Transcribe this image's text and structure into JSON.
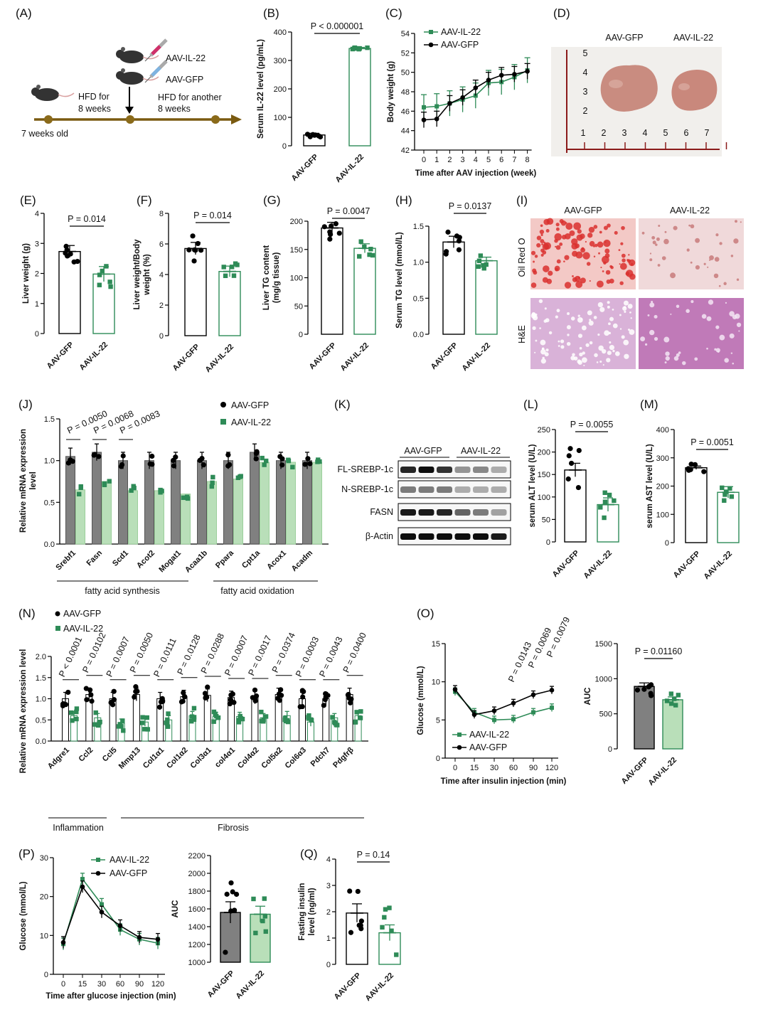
{
  "colors": {
    "gfp": "#000000",
    "il22": "#2e8b57",
    "il22_fill": "#b9dfb9",
    "gfp_fill": "#808080"
  },
  "panels": {
    "A": {
      "label": "(A)",
      "texts": [
        "AAV-IL-22",
        "AAV-GFP",
        "HFD for",
        "8 weeks",
        "HFD for another",
        "8 weeks",
        "7 weeks old"
      ]
    },
    "D": {
      "label": "(D)",
      "col_labels": [
        "AAV-GFP",
        "AAV-IL-22"
      ],
      "ruler_numbers": [
        "1",
        "2",
        "3",
        "4",
        "5",
        "6",
        "7",
        "2",
        "3",
        "4",
        "5"
      ]
    },
    "I": {
      "label": "(I)",
      "col_labels": [
        "AAV-GFP",
        "AAV-IL-22"
      ],
      "row_labels": [
        "Oil Red O",
        "H&E"
      ]
    },
    "K": {
      "label": "(K)",
      "groups": [
        "AAV-GFP",
        "AAV-IL-22"
      ],
      "rows": [
        "FL-SREBP-1c",
        "N-SREBP-1c",
        "FASN",
        "β-Actin"
      ]
    }
  },
  "chart_data": [
    {
      "id": "B",
      "label": "(B)",
      "type": "bar",
      "ylabel": "Serum IL-22 level (pg/mL)",
      "ylim": [
        0,
        400
      ],
      "yticks": [
        "0",
        "100",
        "200",
        "300",
        "400"
      ],
      "categories": [
        "AAV-GFP",
        "AAV-IL-22"
      ],
      "values": [
        38,
        342
      ],
      "fills": [
        "white",
        "white"
      ],
      "p_values": [
        "P < 0.000001"
      ]
    },
    {
      "id": "C",
      "label": "(C)",
      "type": "line",
      "xlabel": "Time after AAV injection (week)",
      "ylabel": "Body weight (g)",
      "ylim": [
        42,
        54
      ],
      "yticks": [
        "42",
        "44",
        "46",
        "48",
        "50",
        "52",
        "54"
      ],
      "x": [
        0,
        1,
        2,
        3,
        4,
        5,
        6,
        7,
        8
      ],
      "xticks": [
        "0",
        "1",
        "2",
        "3",
        "4",
        "5",
        "6",
        "7",
        "8"
      ],
      "series": [
        {
          "name": "AAV-IL-22",
          "values": [
            46.4,
            46.5,
            46.8,
            47.2,
            47.6,
            48.9,
            49.0,
            49.5,
            50.2
          ]
        },
        {
          "name": "AAV-GFP",
          "values": [
            45.1,
            45.2,
            46.8,
            47.4,
            48.4,
            49.2,
            49.7,
            49.8,
            50.1
          ]
        }
      ]
    },
    {
      "id": "E",
      "label": "(E)",
      "type": "bar",
      "ylabel": "Liver weight (g)",
      "ylim": [
        0,
        4
      ],
      "yticks": [
        "0",
        "1",
        "2",
        "3",
        "4"
      ],
      "categories": [
        "AAV-GFP",
        "AAV-IL-22"
      ],
      "values": [
        2.73,
        1.98
      ],
      "fills": [
        "white",
        "white"
      ],
      "p_values": [
        "P = 0.014"
      ]
    },
    {
      "id": "F",
      "label": "(F)",
      "type": "bar",
      "ylabel": "Liver weight/Body weight (%)",
      "ylim": [
        0,
        8
      ],
      "yticks": [
        "0",
        "2",
        "4",
        "6",
        "8"
      ],
      "categories": [
        "AAV-GFP",
        "AAV-IL-22"
      ],
      "values": [
        5.7,
        4.2
      ],
      "fills": [
        "white",
        "white"
      ],
      "p_values": [
        "P = 0.014"
      ]
    },
    {
      "id": "G",
      "label": "(G)",
      "type": "bar",
      "ylabel": "Liver TG content (mg/g tissue)",
      "ylim": [
        0,
        200
      ],
      "yticks": [
        "0",
        "50",
        "100",
        "150",
        "200"
      ],
      "categories": [
        "AAV-GFP",
        "AAV-IL-22"
      ],
      "values": [
        188,
        152
      ],
      "fills": [
        "white",
        "white"
      ],
      "p_values": [
        "P = 0.0047"
      ]
    },
    {
      "id": "H",
      "label": "(H)",
      "type": "bar",
      "ylabel": "Serum TG level (mmol/L)",
      "ylim": [
        0,
        1.5
      ],
      "yticks": [
        "0.0",
        "0.5",
        "1.0",
        "1.5"
      ],
      "categories": [
        "AAV-GFP",
        "AAV-IL-22"
      ],
      "values": [
        1.28,
        1.02
      ],
      "fills": [
        "white",
        "white"
      ],
      "p_values": [
        "P = 0.0137"
      ]
    },
    {
      "id": "J",
      "label": "(J)",
      "type": "bar",
      "ylabel": "Relative mRNA expression level",
      "ylim": [
        0,
        1.5
      ],
      "yticks": [
        "0.0",
        "0.5",
        "1.0",
        "1.5"
      ],
      "categories": [
        "Srebf1",
        "Fasn",
        "Scd1",
        "Acot2",
        "Mogat1",
        "Acaa1b",
        "Ppara",
        "Cpt1a",
        "Acox1",
        "Acadm"
      ],
      "series": [
        {
          "name": "AAV-GFP",
          "values": [
            1.05,
            1.1,
            1.0,
            1.0,
            1.0,
            1.0,
            1.0,
            1.1,
            1.0,
            1.0
          ]
        },
        {
          "name": "AAV-IL-22",
          "values": [
            0.65,
            0.75,
            0.64,
            0.64,
            0.6,
            0.75,
            0.78,
            0.98,
            0.98,
            0.98
          ]
        }
      ],
      "p_values": [
        "P = 0.0050",
        "P = 0.0068",
        "P = 0.0083"
      ],
      "groups": [
        "fatty acid synthesis",
        "fatty acid oxidation"
      ]
    },
    {
      "id": "L",
      "label": "(L)",
      "type": "bar",
      "ylabel": "serum ALT level (U/L)",
      "ylim": [
        0,
        250
      ],
      "yticks": [
        "0",
        "50",
        "100",
        "150",
        "200",
        "250"
      ],
      "categories": [
        "AAV-GFP",
        "AAV-IL-22"
      ],
      "values": [
        160,
        83
      ],
      "fills": [
        "white",
        "white"
      ],
      "p_values": [
        "P = 0.0055"
      ]
    },
    {
      "id": "M",
      "label": "(M)",
      "type": "bar",
      "ylabel": "serum AST level (U/L)",
      "ylim": [
        0,
        400
      ],
      "yticks": [
        "0",
        "100",
        "200",
        "300",
        "400"
      ],
      "categories": [
        "AAV-GFP",
        "AAV-IL-22"
      ],
      "values": [
        265,
        178
      ],
      "fills": [
        "white",
        "white"
      ],
      "p_values": [
        "P = 0.0051"
      ]
    },
    {
      "id": "N",
      "label": "(N)",
      "type": "bar",
      "ylabel": "Relative mRNA expression level",
      "ylim": [
        0,
        2.0
      ],
      "yticks": [
        "0.0",
        "0.5",
        "1.0",
        "1.5",
        "2.0"
      ],
      "categories": [
        "Adgre1",
        "Ccl2",
        "Ccl5",
        "Mmp13",
        "Col1α1",
        "Col1α2",
        "Col3α1",
        "col4α1",
        "Col4α2",
        "Col5α2",
        "Col6α3",
        "Pdch7",
        "Pdgfrβ"
      ],
      "series": [
        {
          "name": "AAV-GFP",
          "values": [
            1.0,
            1.1,
            1.0,
            1.1,
            1.0,
            1.05,
            1.08,
            1.03,
            1.03,
            1.1,
            1.0,
            1.0,
            1.1
          ]
        },
        {
          "name": "AAV-IL-22",
          "values": [
            0.6,
            0.55,
            0.42,
            0.45,
            0.5,
            0.6,
            0.58,
            0.58,
            0.55,
            0.6,
            0.45,
            0.55,
            0.6
          ]
        }
      ],
      "p_values": [
        "P < 0.0001",
        "P = 0.0102",
        "P = 0.0007",
        "P = 0.0050",
        "P = 0.0111",
        "P = 0.0128",
        "P = 0.0288",
        "P = 0.0007",
        "P = 0.0017",
        "P = 0.0374",
        "P = 0.0003",
        "P = 0.0043",
        "P = 0.0400"
      ],
      "groups": [
        "Inflammation",
        "Fibrosis"
      ]
    },
    {
      "id": "O1",
      "label": "(O)",
      "type": "line",
      "xlabel": "Time after insulin injection (min)",
      "ylabel": "Glucose (mmol/L)",
      "ylim": [
        0,
        15
      ],
      "yticks": [
        "0",
        "5",
        "10",
        "15"
      ],
      "x": [
        0,
        15,
        30,
        60,
        90,
        120
      ],
      "xticks": [
        "0",
        "15",
        "30",
        "60",
        "90",
        "120"
      ],
      "series": [
        {
          "name": "AAV-IL-22",
          "values": [
            8.7,
            6.0,
            5.0,
            5.1,
            6.0,
            6.6
          ]
        },
        {
          "name": "AAV-GFP",
          "values": [
            9.0,
            5.7,
            6.2,
            7.2,
            8.3,
            8.9
          ]
        }
      ],
      "p_values": [
        "P = 0.0143",
        "P = 0.0069",
        "P = 0.0079"
      ]
    },
    {
      "id": "O2",
      "label": "",
      "type": "bar",
      "ylabel": "AUC",
      "ylim": [
        0,
        1500
      ],
      "yticks": [
        "0",
        "500",
        "1000",
        "1500"
      ],
      "categories": [
        "AAV-GFP",
        "AAV-IL-22"
      ],
      "values": [
        890,
        700
      ],
      "fills": [
        "gray",
        "green"
      ],
      "p_values": [
        "P = 0.01160"
      ]
    },
    {
      "id": "P1",
      "label": "(P)",
      "type": "line",
      "xlabel": "Time after glucose injection (min)",
      "ylabel": "Glucose (mmol/L)",
      "ylim": [
        0,
        30
      ],
      "yticks": [
        "0",
        "10",
        "20",
        "30"
      ],
      "x": [
        0,
        15,
        30,
        60,
        90,
        120
      ],
      "xticks": [
        "0",
        "15",
        "30",
        "60",
        "90",
        "120"
      ],
      "series": [
        {
          "name": "AAV-IL-22",
          "values": [
            7.8,
            24.5,
            18.0,
            11.5,
            9.0,
            8.0
          ]
        },
        {
          "name": "AAV-GFP",
          "values": [
            8.2,
            22.5,
            16.0,
            12.5,
            9.5,
            9.0
          ]
        }
      ]
    },
    {
      "id": "P2",
      "label": "",
      "type": "bar",
      "ylabel": "AUC",
      "ylim": [
        1000,
        2200
      ],
      "yticks": [
        "1000",
        "1200",
        "1400",
        "1600",
        "1800",
        "2000",
        "2200"
      ],
      "categories": [
        "AAV-GFP",
        "AAV-IL-22"
      ],
      "values": [
        1560,
        1540
      ],
      "fills": [
        "gray",
        "green"
      ]
    },
    {
      "id": "Q",
      "label": "(Q)",
      "type": "bar",
      "ylabel": "Fasting insulin level (ng/ml)",
      "ylim": [
        0,
        4
      ],
      "yticks": [
        "0",
        "1",
        "2",
        "3",
        "4"
      ],
      "categories": [
        "AAV-GFP",
        "AAV-IL-22"
      ],
      "values": [
        1.95,
        1.2
      ],
      "fills": [
        "white",
        "white"
      ],
      "p_values": [
        "P = 0.14"
      ]
    }
  ]
}
